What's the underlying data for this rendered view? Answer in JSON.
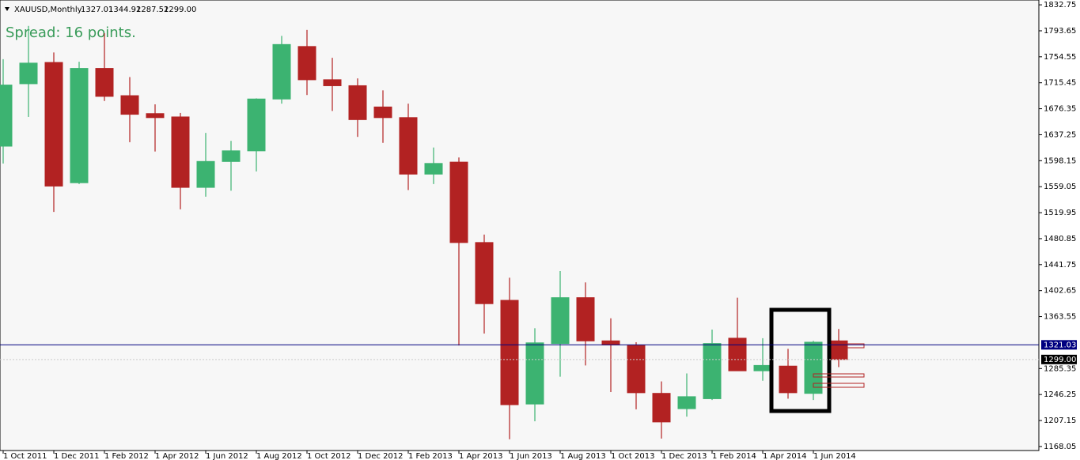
{
  "chart_data": {
    "type": "candlestick",
    "header": {
      "symbol": "XAUUSD,Monthly",
      "ohlc": [
        1327.01,
        1344.92,
        1287.52,
        {
          "value": 1299,
          "label": "1299.00"
        }
      ]
    },
    "spread_text": "Spread: 16 points.",
    "categories": [
      "1 Oct 2011",
      null,
      "1 Dec 2011",
      null,
      "1 Feb 2012",
      null,
      "1 Apr 2012",
      null,
      "1 Jun 2012",
      null,
      "1 Aug 2012",
      null,
      "1 Oct 2012",
      null,
      "1 Dec 2012",
      null,
      "1 Feb 2013",
      null,
      "1 Apr 2013",
      null,
      "1 Jun 2013",
      null,
      "1 Aug 2013",
      null,
      "1 Oct 2013",
      null,
      "1 Dec 2013",
      null,
      "1 Feb 2014",
      null,
      "1 Apr 2014",
      null,
      "1 Jun 2014",
      null
    ],
    "open": [
      1620,
      1714,
      1746,
      1565,
      1737,
      1696,
      1669,
      1664,
      1558,
      1597,
      1613,
      1691,
      1770,
      1720,
      1711,
      1679,
      1663,
      1578,
      1596,
      1475,
      1388,
      1232,
      1323,
      1392,
      1327,
      1320,
      1248,
      1225,
      1240,
      1331,
      1282,
      1289,
      1248,
      1327.01
    ],
    "high": [
      1751,
      1801,
      1761,
      1747,
      1790,
      1724,
      1683,
      1670,
      1640,
      1628,
      1692,
      1786,
      1795,
      1753,
      1722,
      1704,
      1684,
      1618,
      1603,
      1487,
      1422,
      1346,
      1432,
      1415,
      1361,
      1325,
      1266,
      1278,
      1344,
      1392,
      1331,
      1315,
      1327,
      1344.92
    ],
    "low": [
      1594,
      1664,
      1521,
      1563,
      1688,
      1626,
      1612,
      1525,
      1544,
      1553,
      1582,
      1684,
      1697,
      1673,
      1634,
      1625,
      1554,
      1563,
      1320,
      1338,
      1179,
      1206,
      1273,
      1290,
      1250,
      1224,
      1180,
      1213,
      1238,
      1282,
      1267,
      1240,
      1238,
      1287.52
    ],
    "close": [
      1712,
      1745,
      1560,
      1737,
      1695,
      1668,
      1663,
      1558,
      1597,
      1613,
      1691,
      1773,
      1720,
      1711,
      1660,
      1663,
      1578,
      1594,
      1475,
      1383,
      1231,
      1324,
      1392,
      1327,
      1321,
      1249,
      1205,
      1243,
      1323,
      1282,
      1290,
      1249,
      1325,
      1299
    ],
    "up_color": "#3cb371",
    "down_color": "#b22222",
    "ylim": [
      1162,
      1840
    ],
    "yticks": [
      1832.75,
      1793.65,
      1754.55,
      1715.45,
      1676.35,
      1637.25,
      1598.15,
      1559.05,
      1519.95,
      1480.85,
      1441.75,
      1402.65,
      1363.55,
      1285.35,
      1246.25,
      1207.15,
      1168.05
    ],
    "price_line": {
      "value": 1321.03,
      "color": "#000080"
    },
    "current_price": {
      "value": 1299,
      "label": "1299.00"
    }
  }
}
